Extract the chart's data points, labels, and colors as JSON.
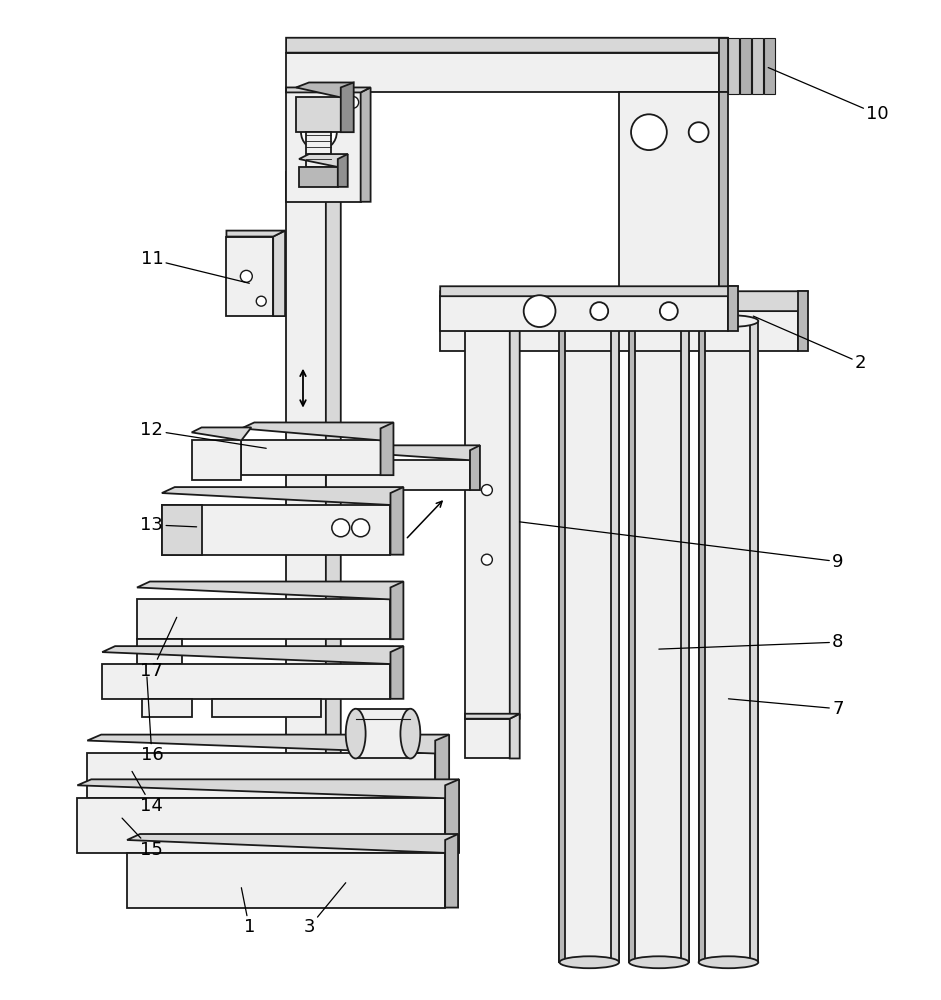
{
  "bg_color": "#ffffff",
  "lc": "#1a1a1a",
  "lw": 1.3,
  "figsize": [
    9.41,
    10.0
  ],
  "dpi": 100,
  "gray_light": "#f0f0f0",
  "gray_mid": "#d8d8d8",
  "gray_dark": "#b8b8b8",
  "gray_darker": "#909090"
}
